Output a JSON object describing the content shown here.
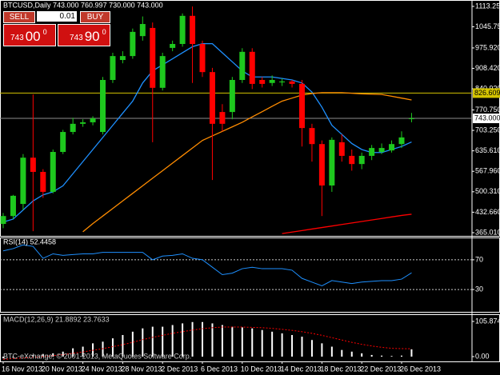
{
  "chart_data": [
    {
      "type": "candlestick",
      "title": "BTCUSD,Daily  743.000 760.997 730.000 743.000",
      "categories": [
        "16 Nov 2013",
        null,
        null,
        null,
        "20 Nov 2013",
        null,
        null,
        null,
        "24 Nov 2013",
        null,
        null,
        null,
        "28 Nov 2013",
        null,
        null,
        null,
        "2 Dec 2013",
        null,
        null,
        null,
        "6 Dec 2013",
        null,
        null,
        null,
        "10 Dec 2013",
        null,
        null,
        null,
        "14 Dec 2013",
        null,
        null,
        null,
        "18 Dec 2013",
        null,
        null,
        null,
        "22 Dec 2013",
        null,
        null,
        null,
        "26 Dec 2013",
        null
      ],
      "open": [
        394,
        420,
        460,
        613,
        566,
        500,
        632,
        698,
        725,
        730,
        698,
        870,
        936,
        949,
        1015,
        1042,
        844,
        976,
        989,
        1082,
        989,
        896,
        764,
        764,
        870,
        963,
        870,
        860,
        862,
        865,
        857,
        711,
        658,
        521,
        664,
        619,
        592,
        619,
        632,
        637,
        658,
        743
      ],
      "high": [
        430,
        490,
        625,
        822,
        575,
        640,
        705,
        745,
        740,
        750,
        880,
        960,
        965,
        1040,
        1080,
        1060,
        960,
        1000,
        1090,
        1113,
        1000,
        910,
        790,
        880,
        975,
        975,
        880,
        885,
        875,
        870,
        870,
        725,
        670,
        680,
        690,
        640,
        630,
        655,
        660,
        670,
        700,
        760.997
      ],
      "low": [
        380,
        410,
        440,
        370,
        480,
        495,
        625,
        690,
        715,
        720,
        690,
        860,
        925,
        940,
        1000,
        664,
        835,
        965,
        980,
        860,
        880,
        539,
        700,
        740,
        860,
        840,
        845,
        850,
        850,
        845,
        650,
        600,
        420,
        500,
        600,
        570,
        575,
        605,
        625,
        630,
        645,
        730
      ],
      "close": [
        420,
        487,
        613,
        566,
        500,
        632,
        698,
        725,
        730,
        743,
        870,
        949,
        949,
        1029,
        1055,
        844,
        949,
        989,
        1082,
        989,
        896,
        725,
        725,
        870,
        963,
        857,
        857,
        870,
        865,
        857,
        711,
        658,
        521,
        672,
        619,
        592,
        619,
        645,
        645,
        658,
        680,
        743
      ],
      "up_color": "#1ec81e",
      "down_color": "#ff0000",
      "lines": [
        {
          "color": "#1e90ff",
          "values": [
            400,
            410,
            440,
            470,
            490,
            500,
            520,
            560,
            600,
            640,
            680,
            720,
            760,
            800,
            860,
            900,
            920,
            940,
            960,
            980,
            990,
            990,
            960,
            930,
            900,
            880,
            880,
            880,
            875,
            870,
            860,
            830,
            780,
            720,
            690,
            660,
            640,
            630,
            630,
            640,
            650,
            665
          ]
        },
        {
          "color": "#ff8c00",
          "values": [
            null,
            null,
            null,
            null,
            null,
            null,
            null,
            null,
            368,
            395,
            420,
            445,
            470,
            495,
            520,
            545,
            570,
            595,
            620,
            645,
            670,
            685,
            700,
            715,
            730,
            748,
            765,
            783,
            800,
            810,
            820,
            825,
            828,
            828,
            828,
            826,
            824,
            823,
            822,
            816,
            810,
            804
          ]
        },
        {
          "color": "#ff0000",
          "values": [
            null,
            null,
            null,
            null,
            null,
            null,
            null,
            null,
            null,
            null,
            null,
            null,
            null,
            null,
            null,
            null,
            null,
            null,
            null,
            null,
            null,
            null,
            null,
            null,
            null,
            null,
            null,
            null,
            362,
            367,
            372,
            377,
            382,
            387,
            392,
            397,
            402,
            407,
            412,
            417,
            422,
            426
          ]
        }
      ],
      "hlines": [
        {
          "y": 826.609,
          "color": "#d4c400"
        },
        {
          "y": {
            "value": 743,
            "label": "743.000"
          },
          "color": "#8c8c8c"
        }
      ],
      "ylim": [
        354.4,
        1134.4
      ],
      "yticks": [
        {
          "value": 1113.25,
          "label": "1113.250"
        },
        {
          "value": 1045.75,
          "label": "1045.750"
        },
        {
          "value": 975.92,
          "label": "975.920"
        },
        {
          "value": 908.42,
          "label": "908.420"
        },
        {
          "value": 840.92,
          "label": "840.920"
        },
        {
          "value": 770.75,
          "label": "770.750"
        },
        {
          "value": 703.25,
          "label": "703.250"
        },
        {
          "value": 635.61,
          "label": "635.610"
        },
        {
          "value": 567.96,
          "label": "567.960"
        },
        {
          "value": 500.31,
          "label": "500.310"
        },
        {
          "value": 432.66,
          "label": "432.660"
        },
        {
          "value": 365.01,
          "label": "365.010"
        }
      ]
    },
    {
      "type": "line",
      "title": "RSI(14) 52.4458",
      "color": "#1e90ff",
      "values": [
        82,
        85,
        90,
        88,
        72,
        78,
        76,
        77,
        78,
        78,
        80,
        80,
        80,
        80,
        80,
        70,
        75,
        76,
        78,
        72,
        70,
        60,
        50,
        52,
        58,
        60,
        58,
        58,
        58,
        56,
        45,
        40,
        35,
        42,
        40,
        38,
        40,
        41,
        42,
        42,
        44,
        52.4458
      ],
      "ylim": [
        0,
        100
      ],
      "yticks": [
        70,
        30
      ]
    },
    {
      "type": "bar",
      "title": "MACD(12,26,9) 21.8892 23.7633",
      "color": "#ffffff",
      "values": [
        -5,
        -3,
        0,
        5,
        8,
        10,
        15,
        25,
        30,
        40,
        45,
        55,
        65,
        75,
        85,
        90,
        90,
        95,
        100,
        104,
        104,
        100,
        95,
        90,
        88,
        85,
        80,
        75,
        70,
        65,
        60,
        50,
        40,
        30,
        20,
        15,
        10,
        5,
        3,
        2,
        3,
        21.8892
      ],
      "signal": {
        "color": "#ff0000",
        "values": [
          -8,
          -6,
          -4,
          -2,
          0,
          3,
          6,
          10,
          14,
          19,
          24,
          30,
          36,
          43,
          51,
          58,
          64,
          70,
          75,
          80,
          84,
          87,
          89,
          89,
          89,
          88,
          87,
          85,
          82,
          79,
          75,
          70,
          64,
          57,
          50,
          43,
          37,
          32,
          28,
          25,
          24,
          23.7633
        ]
      },
      "ylim": [
        -14.4,
        127.5
      ],
      "yticks": [
        {
          "value": 105.8742,
          "label": "105.8742"
        },
        {
          "value": 0,
          "label": "0.00"
        }
      ]
    }
  ],
  "trade_panel": {
    "sell": "SELL",
    "buy": "BUY",
    "lots": "0.01",
    "sell_price": {
      "prefix": "743",
      "big": "00",
      "sup": "0"
    },
    "buy_price": {
      "prefix": "743",
      "big": "90",
      "sup": "0"
    }
  },
  "copyright": "BTC-eXchange, © 2001-2013, MetaQuotes Software Corp."
}
